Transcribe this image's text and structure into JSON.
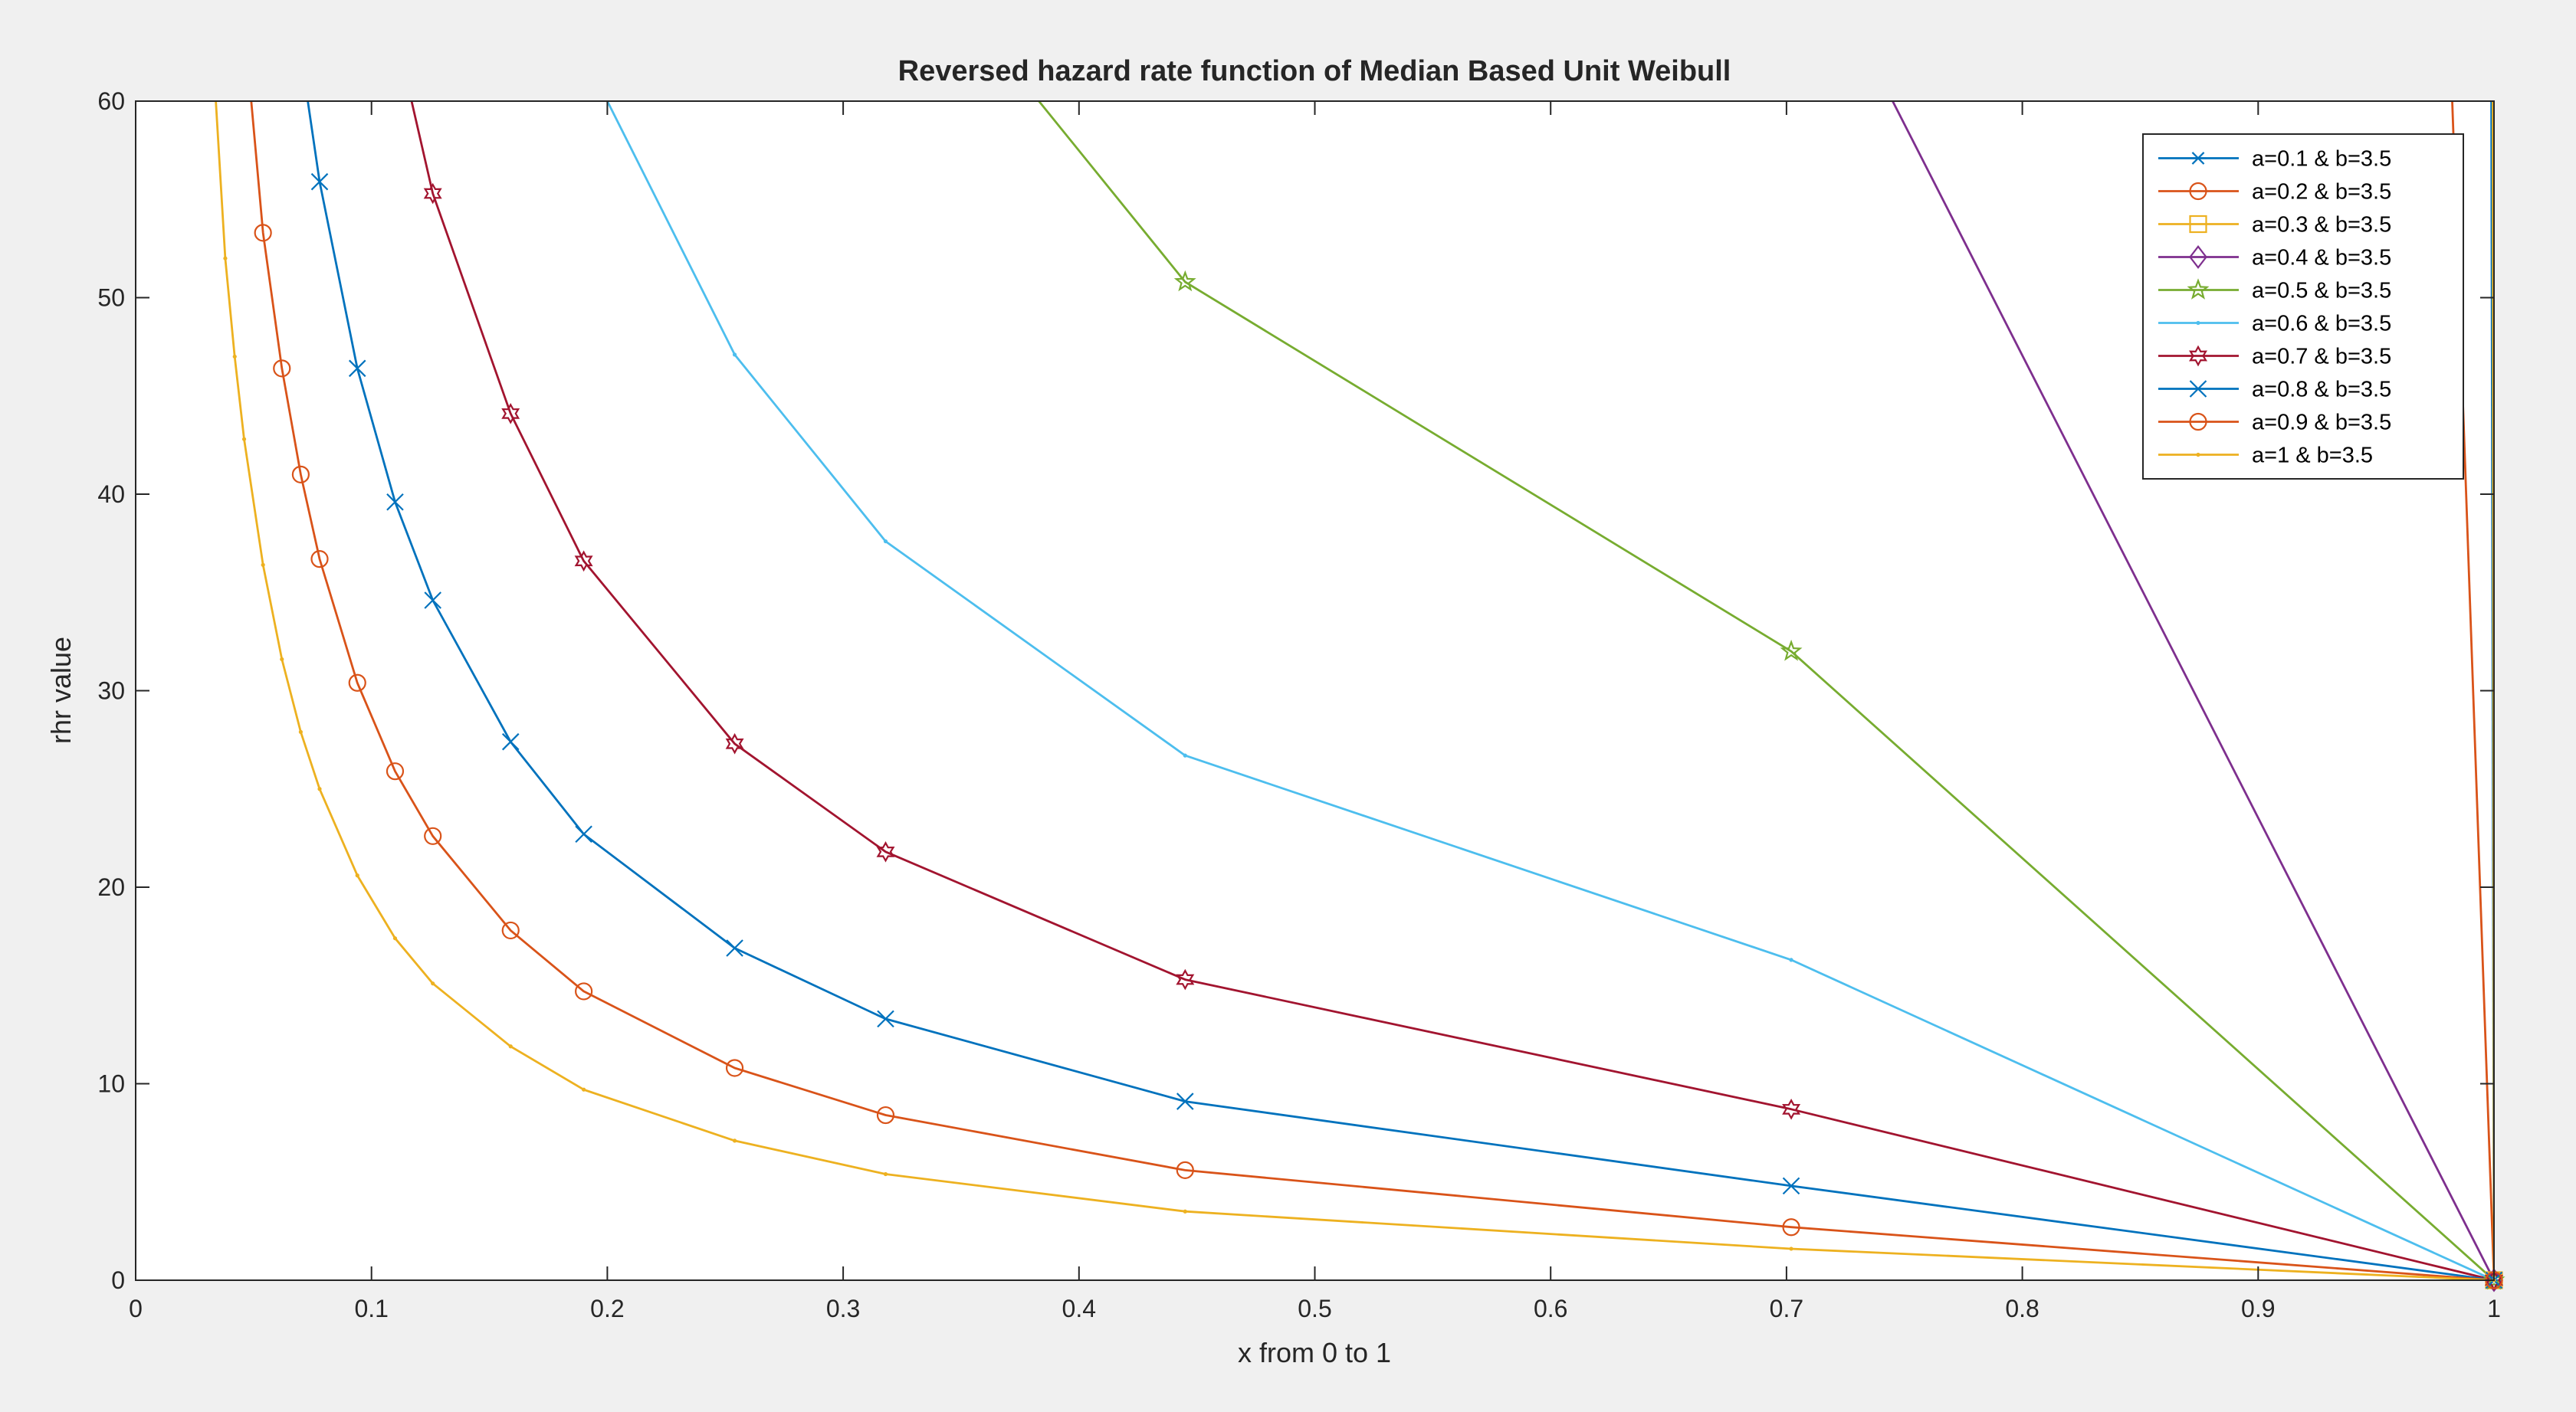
{
  "chart_data": {
    "type": "line",
    "title": "Reversed hazard rate function of Median Based  Unit  Weibull",
    "xlabel": "x from 0 to 1",
    "ylabel": "rhr value",
    "xlim": [
      0,
      1
    ],
    "ylim": [
      0,
      60
    ],
    "xticks": [
      "0",
      "0.1",
      "0.2",
      "0.3",
      "0.4",
      "0.5",
      "0.6",
      "0.7",
      "0.8",
      "0.9",
      "1"
    ],
    "yticks": [
      "0",
      "10",
      "20",
      "30",
      "40",
      "50",
      "60"
    ],
    "grid": false,
    "legend_position": "top-right",
    "background": "#f0f0f0",
    "plot_background": "#ffffff",
    "series": [
      {
        "name": "a=0.1   &  b=3.5",
        "color": "#0072bd",
        "marker": "asterisk",
        "points": [
          [
            0.9989,
            60
          ],
          [
            1.0,
            0
          ]
        ]
      },
      {
        "name": "a=0.2  &  b=3.5",
        "color": "#d95319",
        "marker": "circle",
        "points": [
          [
            0.9823,
            60
          ],
          [
            1.0,
            0
          ]
        ]
      },
      {
        "name": "a=0.3  &  b=3.5",
        "color": "#edb120",
        "marker": "square",
        "points": [
          [
            0.9995,
            60
          ],
          [
            1.0,
            0
          ]
        ]
      },
      {
        "name": "a=0.4   &  b=3.5",
        "color": "#7e2f8e",
        "marker": "diamond",
        "points": [
          [
            0.745,
            60
          ],
          [
            1.0,
            0
          ]
        ]
      },
      {
        "name": "a=0.5  &  b=3.5",
        "color": "#77ac30",
        "marker": "pentagram",
        "points": [
          [
            0.383,
            60
          ],
          [
            0.445,
            50.8
          ],
          [
            0.702,
            32
          ],
          [
            1.0,
            0
          ]
        ]
      },
      {
        "name": "a=0.6  &  b=3.5",
        "color": "#4dbeee",
        "marker": "point",
        "points": [
          [
            0.2,
            60
          ],
          [
            0.254,
            47.1
          ],
          [
            0.318,
            37.6
          ],
          [
            0.445,
            26.7
          ],
          [
            0.702,
            16.3
          ],
          [
            1.0,
            0
          ]
        ]
      },
      {
        "name": "a=0.7   &  b=3.5",
        "color": "#a2142f",
        "marker": "hexagram",
        "points": [
          [
            0.117,
            60
          ],
          [
            0.126,
            55.3
          ],
          [
            0.159,
            44.1
          ],
          [
            0.19,
            36.6
          ],
          [
            0.254,
            27.3
          ],
          [
            0.318,
            21.8
          ],
          [
            0.445,
            15.3
          ],
          [
            0.702,
            8.7
          ],
          [
            1.0,
            0
          ]
        ]
      },
      {
        "name": "a=0.8   &  b=3.5",
        "color": "#0072bd",
        "marker": "x",
        "points": [
          [
            0.073,
            60
          ],
          [
            0.078,
            55.9
          ],
          [
            0.094,
            46.4
          ],
          [
            0.11,
            39.6
          ],
          [
            0.126,
            34.6
          ],
          [
            0.159,
            27.4
          ],
          [
            0.19,
            22.7
          ],
          [
            0.254,
            16.9
          ],
          [
            0.318,
            13.3
          ],
          [
            0.445,
            9.1
          ],
          [
            0.702,
            4.8
          ],
          [
            1.0,
            0
          ]
        ]
      },
      {
        "name": "a=0.9   &  b=3.5",
        "color": "#d95319",
        "marker": "circle",
        "points": [
          [
            0.049,
            60
          ],
          [
            0.054,
            53.3
          ],
          [
            0.062,
            46.4
          ],
          [
            0.07,
            41.0
          ],
          [
            0.078,
            36.7
          ],
          [
            0.094,
            30.4
          ],
          [
            0.11,
            25.9
          ],
          [
            0.126,
            22.6
          ],
          [
            0.159,
            17.8
          ],
          [
            0.19,
            14.7
          ],
          [
            0.254,
            10.8
          ],
          [
            0.318,
            8.4
          ],
          [
            0.445,
            5.6
          ],
          [
            0.702,
            2.7
          ],
          [
            1.0,
            0
          ]
        ]
      },
      {
        "name": "a=1 & b=3.5",
        "color": "#edb120",
        "marker": "point",
        "points": [
          [
            0.034,
            60
          ],
          [
            0.038,
            52.0
          ],
          [
            0.042,
            47.0
          ],
          [
            0.046,
            42.8
          ],
          [
            0.054,
            36.4
          ],
          [
            0.062,
            31.6
          ],
          [
            0.07,
            27.9
          ],
          [
            0.078,
            25.0
          ],
          [
            0.094,
            20.6
          ],
          [
            0.11,
            17.4
          ],
          [
            0.126,
            15.1
          ],
          [
            0.159,
            11.9
          ],
          [
            0.19,
            9.7
          ],
          [
            0.254,
            7.1
          ],
          [
            0.318,
            5.4
          ],
          [
            0.445,
            3.5
          ],
          [
            0.702,
            1.6
          ],
          [
            1.0,
            0
          ]
        ]
      }
    ]
  }
}
